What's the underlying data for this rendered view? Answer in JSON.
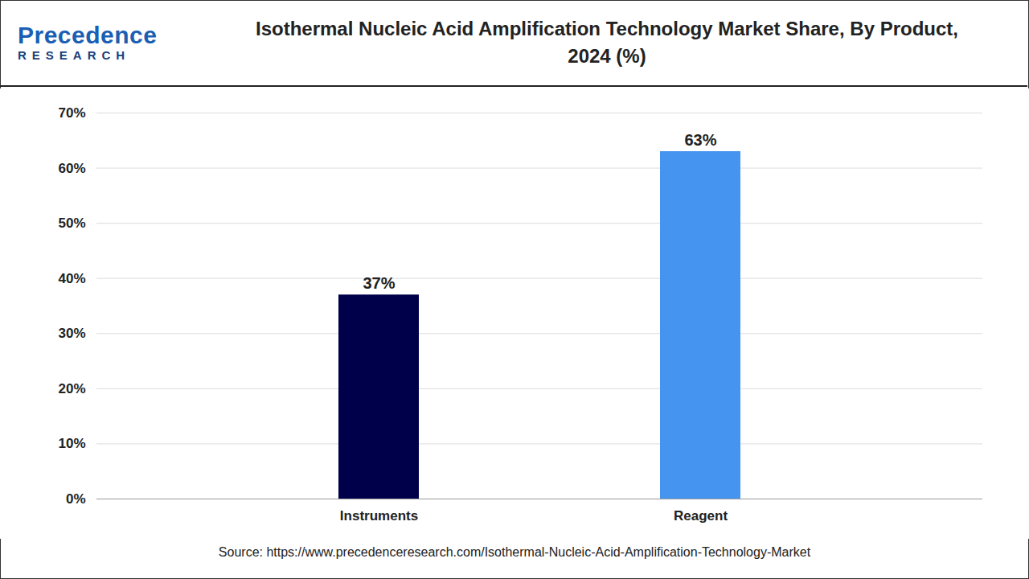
{
  "chart_data": {
    "type": "bar",
    "title": "Isothermal Nucleic Acid Amplification Technology Market Share, By Product, 2024 (%)",
    "logo_text": "Precedence",
    "logo_subtext": "RESEARCH",
    "source": "Source: https://www.precedenceresearch.com/Isothermal-Nucleic-Acid-Amplification-Technology-Market",
    "categories": [
      "Instruments",
      "Reagent"
    ],
    "values": [
      37,
      63
    ],
    "value_labels": [
      "37%",
      "63%"
    ],
    "colors": [
      "#00004A",
      "#4594F0"
    ],
    "ylim": [
      0,
      70
    ],
    "yticks": [
      {
        "value": 0,
        "label": "0%"
      },
      {
        "value": 10,
        "label": "10%"
      },
      {
        "value": 20,
        "label": "20%"
      },
      {
        "value": 30,
        "label": "30%"
      },
      {
        "value": 40,
        "label": "40%"
      },
      {
        "value": 50,
        "label": "50%"
      },
      {
        "value": 60,
        "label": "60%"
      },
      {
        "value": 70,
        "label": "70%"
      }
    ],
    "grid": true,
    "data_labels": true
  }
}
